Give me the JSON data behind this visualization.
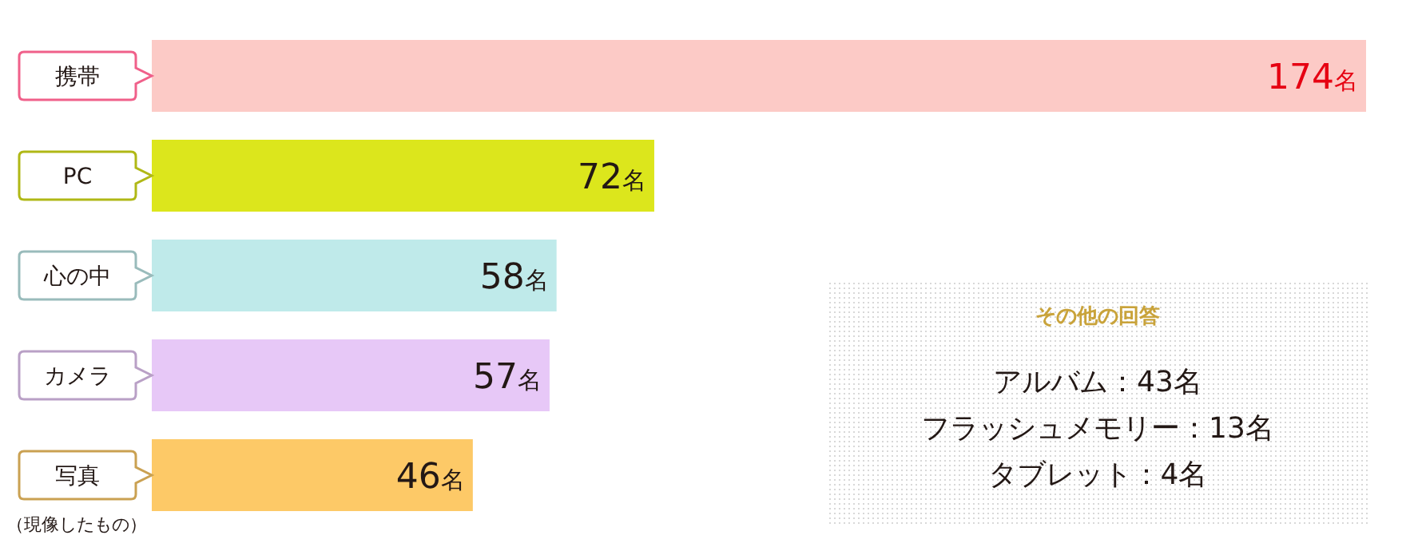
{
  "chart_data": {
    "type": "bar",
    "orientation": "horizontal",
    "categories": [
      "携帯",
      "PC",
      "心の中",
      "カメラ",
      "写真"
    ],
    "values": [
      174,
      72,
      58,
      57,
      46
    ],
    "colors": [
      "#fccac6",
      "#dce61c",
      "#bfeaea",
      "#e7c8f7",
      "#fdc967"
    ],
    "value_labels": [
      "174名",
      "72名",
      "58名",
      "57名",
      "46名"
    ],
    "annotations": [
      "（現像したもの）",
      "その他の回答",
      "アルバム：43名",
      "フラッシュメモリー：13名",
      "タブレット：4名"
    ]
  }
}
